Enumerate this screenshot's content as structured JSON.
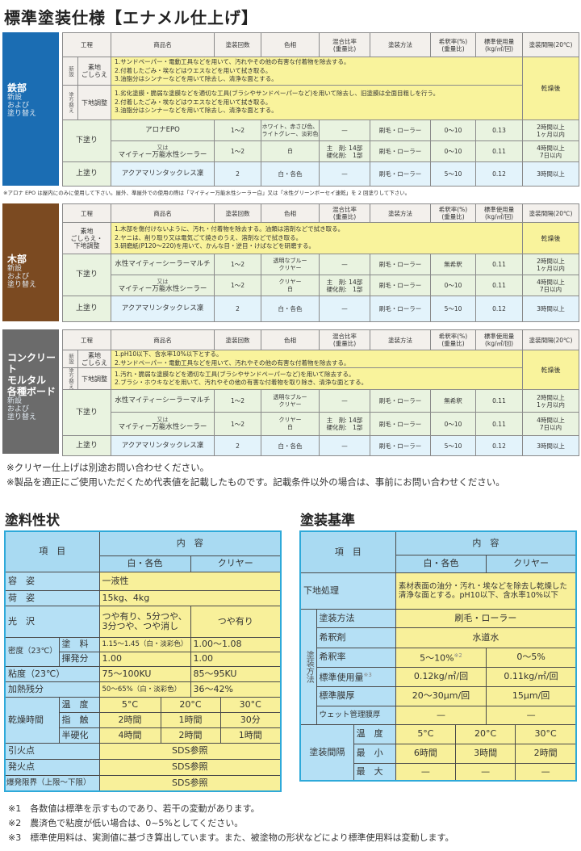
{
  "title": "標準塗装仕様【エナメル仕上げ】",
  "spec_headers": [
    "工程",
    "商品名",
    "塗装回数",
    "色相",
    "混合比率\n(重量比)",
    "塗装方法",
    "希釈率(%)\n(重量比)",
    "標準使用量\n(kg/㎡/回)",
    "塗装間隔(20℃)"
  ],
  "specs": [
    {
      "label_title": "鉄部",
      "label_sub": "新設\nおよび\n塗り替え",
      "color": "#1b6db3",
      "prep": {
        "interval": "乾燥後",
        "rows": [
          {
            "side": "新設",
            "step": "素地\nごしらえ",
            "lines": [
              "1.サンドペーパー・電動工具などを用いて、汚れやその他の有害な付着物を除去する。",
              "2.付着したごみ・埃などはウエスなどを用いて拭き取る。",
              "3.油脂分はシンナーなどを用いて除去し、清浄な面とする。"
            ]
          },
          {
            "side": "塗り替え",
            "step": "下地調整",
            "lines": [
              "1.劣化塗膜・脆弱な塗膜などを適切な工具(ブラシやサンドペーパーなど)を用いて除去し、旧塗膜は全面目粗しを行う。",
              "2.付着したごみ・埃などはウエスなどを用いて拭き取る。",
              "3.油脂分はシンナーなどを用いて除去し、清浄な面とする。"
            ]
          }
        ]
      },
      "lower": {
        "label": "下塗り",
        "or_label": "又は",
        "rows": [
          {
            "product": "アロナEPO",
            "coats": "1～2",
            "color": "ホワイト、赤さび色、\nライトグレー、淡彩色",
            "mix": "—",
            "method": "刷毛・ローラー",
            "dilution": "0～10",
            "usage": "0.13",
            "interval": "2時間以上\n1ヶ月以内"
          },
          {
            "product": "マイティー万能水性シーラー",
            "coats": "1～2",
            "color": "白",
            "mix": "主　剤: 14部\n硬化剤:　1部",
            "method": "刷毛・ローラー",
            "dilution": "0～10",
            "usage": "0.11",
            "interval": "4時間以上\n7日以内"
          }
        ]
      },
      "upper": {
        "label": "上塗り",
        "product": "アクアマリンタックレス凜",
        "coats": "2",
        "color": "白・各色",
        "mix": "—",
        "method": "刷毛・ローラー",
        "dilution": "5～10",
        "usage": "0.12",
        "interval": "3時間以上"
      },
      "footnote": "※アロナ EPO は屋内にのみに使用して下さい。屋外、準屋外での使用の際は「マイティー万能水性シーラー白」又は「水性グリーンボーセイ速乾」を 2 回塗りして下さい。"
    },
    {
      "label_title": "木部",
      "label_sub": "新設\nおよび\n塗り替え",
      "color": "#7b4a21",
      "prep": {
        "interval": "乾燥後",
        "rows": [
          {
            "side": "",
            "step": "素地\nごしらえ・\n下地調整",
            "lines": [
              "1.木部を傷付けないように、汚れ・付着物を除去する。油類は溶剤などで拭き取る。",
              "2.ヤニは、削り取り又は電気ごて焼きのうえ、溶剤などで拭き取る。",
              "3.研磨紙(P120～220)を用いて、かんな目・逆目・けばなどを研磨する。"
            ]
          }
        ]
      },
      "lower": {
        "label": "下塗り",
        "or_label": "又は",
        "rows": [
          {
            "product": "水性マイティーシーラーマルチ",
            "coats": "1～2",
            "color": "透明なブルー\nクリヤー",
            "mix": "—",
            "method": "刷毛・ローラー",
            "dilution": "無希釈",
            "usage": "0.11",
            "interval": "2時間以上\n1ヶ月以内"
          },
          {
            "product": "マイティー万能水性シーラー",
            "coats": "1～2",
            "color": "クリヤー\n白",
            "mix": "主　剤: 14部\n硬化剤:　1部",
            "method": "刷毛・ローラー",
            "dilution": "0～10",
            "usage": "0.11",
            "interval": "4時間以上\n7日以内"
          }
        ]
      },
      "upper": {
        "label": "上塗り",
        "product": "アクアマリンタックレス凜",
        "coats": "2",
        "color": "白・各色",
        "mix": "—",
        "method": "刷毛・ローラー",
        "dilution": "5～10",
        "usage": "0.12",
        "interval": "3時間以上"
      }
    },
    {
      "label_title": "コンクリート\nモルタル\n各種ボード",
      "label_sub": "新設\nおよび\n塗り替え",
      "color": "#6b6b6b",
      "prep": {
        "interval": "乾燥後",
        "rows": [
          {
            "side": "新設",
            "step": "素地\nごしらえ",
            "lines": [
              "1.pH10以下、含水率10%以下とする。",
              "2.サンドペーパー・電動工具などを用いて、汚れやその他の有害な付着物を除去する。"
            ]
          },
          {
            "side": "塗り替え",
            "step": "下地調整",
            "lines": [
              "1.汚れ・脆弱な塗膜などを適切な工具(ブラシやサンドペーパーなど)を用いて除去する。",
              "2.ブラシ・ホウキなどを用いて、汚れやその他の有害な付着物を取り除き、清浄な面とする。"
            ]
          }
        ]
      },
      "lower": {
        "label": "下塗り",
        "or_label": "又は",
        "rows": [
          {
            "product": "水性マイティーシーラーマルチ",
            "coats": "1～2",
            "color": "透明なブルー\nクリヤー",
            "mix": "—",
            "method": "刷毛・ローラー",
            "dilution": "無希釈",
            "usage": "0.11",
            "interval": "2時間以上\n1ヶ月以内"
          },
          {
            "product": "マイティー万能水性シーラー",
            "coats": "1～2",
            "color": "クリヤー\n白",
            "mix": "主　剤: 14部\n硬化剤:　1部",
            "method": "刷毛・ローラー",
            "dilution": "0～10",
            "usage": "0.11",
            "interval": "4時間以上\n7日以内"
          }
        ]
      },
      "upper": {
        "label": "上塗り",
        "product": "アクアマリンタックレス凜",
        "coats": "2",
        "color": "白・各色",
        "mix": "—",
        "method": "刷毛・ローラー",
        "dilution": "5～10",
        "usage": "0.12",
        "interval": "3時間以上"
      }
    }
  ],
  "notes": [
    "※クリヤー仕上げは別途お問い合わせください。",
    "※製品を適正にご使用いただくため代表値を記載したものです。記載条件以外の場合は、事前にお問い合わせください。"
  ],
  "properties": {
    "heading": "塗料性状",
    "item_header": "項　目",
    "content_header": "内　容",
    "col_white": "白・各色",
    "col_clear": "クリヤー",
    "form": {
      "label": "容　姿",
      "value": "一液性"
    },
    "packing": {
      "label": "荷　姿",
      "value": "15kg、4kg"
    },
    "gloss": {
      "label": "光　沢",
      "white": "つや有り、5分つや、\n3分つや、つや消し",
      "clear": "つや有り"
    },
    "density": {
      "label": "密度（23℃）",
      "paint_label": "塗　料",
      "paint_white": "1.15～1.45（白・淡彩色）",
      "paint_clear": "1.00～1.08",
      "volatile_label": "揮発分",
      "volatile_white": "1.00",
      "volatile_clear": "1.00"
    },
    "viscosity": {
      "label": "粘度（23℃）",
      "white": "75～100KU",
      "clear": "85～95KU"
    },
    "residue": {
      "label": "加熱残分",
      "white": "50～65%（白・淡彩色）",
      "clear": "36～42%"
    },
    "drying": {
      "label": "乾燥時間",
      "temp_label": "温　度",
      "temps": [
        "5°C",
        "20°C",
        "30°C"
      ],
      "touch_label": "指　触",
      "touch": [
        "2時間",
        "1時間",
        "30分"
      ],
      "semi_label": "半硬化",
      "semi": [
        "4時間",
        "2時間",
        "1時間"
      ]
    },
    "flash": {
      "label": "引火点",
      "value": "SDS参照"
    },
    "ignition": {
      "label": "発火点",
      "value": "SDS参照"
    },
    "explosive": {
      "label": "爆発限界（上限～下限）",
      "value": "SDS参照"
    }
  },
  "standard": {
    "heading": "塗装基準",
    "item_header": "項　目",
    "content_header": "内　容",
    "col_white": "白・各色",
    "col_clear": "クリヤー",
    "substrate": {
      "label": "下地処理",
      "value": "素材表面の油分・汚れ・埃などを除去し乾燥した\n清浄な面とする。pH10以下、含水率10%以下"
    },
    "method_group": "塗装方法",
    "method": {
      "label": "塗装方法",
      "value": "刷毛・ローラー"
    },
    "thinner": {
      "label": "希釈剤",
      "value": "水道水"
    },
    "dilution": {
      "label": "希釈率",
      "white": "5～10%",
      "white_mark": "※2",
      "clear": "0～5%"
    },
    "usage": {
      "label": "標準使用量",
      "mark": "※3",
      "white": "0.12kg/㎡/回",
      "clear": "0.11kg/㎡/回"
    },
    "thickness": {
      "label": "標準膜厚",
      "white": "20～30μm/回",
      "clear": "15μm/回"
    },
    "wet": {
      "label": "ウェット管理膜厚",
      "white": "—",
      "clear": "—"
    },
    "interval": {
      "label": "塗装間隔",
      "temp_label": "温　度",
      "temps": [
        "5°C",
        "20°C",
        "30°C"
      ],
      "min_label": "最　小",
      "min": [
        "6時間",
        "3時間",
        "2時間"
      ],
      "max_label": "最　大",
      "max": [
        "—",
        "—",
        "—"
      ]
    }
  },
  "footnotes": [
    "※1　各数値は標準を示すものであり、若干の変動があります。",
    "※2　農済色で粘度が低い場合は、0~5%としてください。",
    "※3　標準使用料は、実測値に基づき算出しています。また、被塗物の形状などにより標準使用料は変動します。"
  ]
}
